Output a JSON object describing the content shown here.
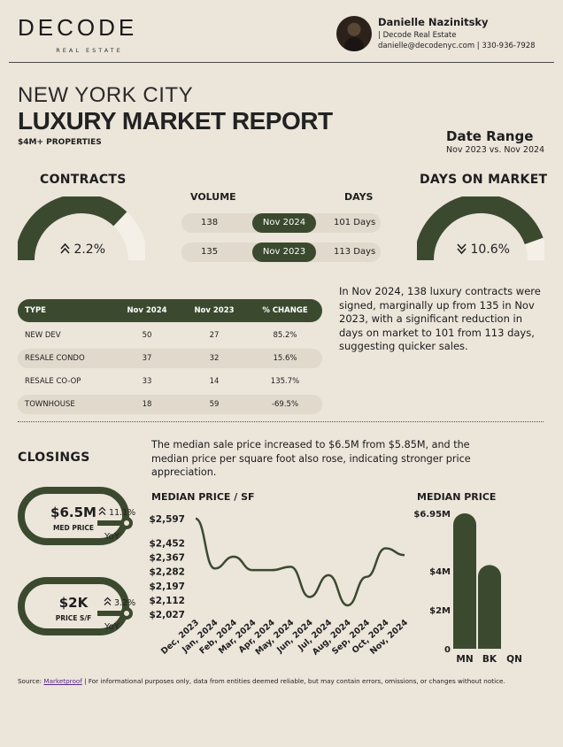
{
  "brand": {
    "name": "DECODE",
    "subtitle": "REAL ESTATE"
  },
  "agent": {
    "name": "Danielle Nazinitsky",
    "company": "| Decode Real Estate",
    "contact": "danielle@decodenyc.com | 330-936-7928"
  },
  "report": {
    "title_line1": "NEW YORK CITY",
    "title_line2": "LUXURY MARKET REPORT",
    "subtitle": "$4M+ PROPERTIES",
    "date_range_label": "Date Range",
    "date_range_value": "Nov 2023 vs. Nov 2024"
  },
  "contracts": {
    "heading": "CONTRACTS",
    "change": "2.2%",
    "gauge_fraction": 0.74,
    "volume_header": "VOLUME",
    "days_header": "DAYS",
    "rows": [
      {
        "volume": "138",
        "period": "Nov 2024",
        "days": "101 Days"
      },
      {
        "volume": "135",
        "period": "Nov 2023",
        "days": "113 Days"
      }
    ]
  },
  "days_on_market": {
    "heading": "DAYS ON MARKET",
    "change": "10.6%",
    "gauge_fraction": 0.89
  },
  "table": {
    "headers": [
      "TYPE",
      "Nov 2024",
      "Nov 2023",
      "% CHANGE"
    ],
    "rows": [
      [
        "NEW DEV",
        "50",
        "27",
        "85.2%"
      ],
      [
        "RESALE CONDO",
        "37",
        "32",
        "15.6%"
      ],
      [
        "RESALE CO-OP",
        "33",
        "14",
        "135.7%"
      ],
      [
        "TOWNHOUSE",
        "18",
        "59",
        "-69.5%"
      ]
    ]
  },
  "contracts_summary": "In Nov 2024, 138 luxury contracts were signed, marginally up from 135 in Nov 2023, with a significant reduction in days on market to 101 from 113 days, suggesting quicker sales.",
  "closings": {
    "heading": "CLOSINGS",
    "summary": "The median sale price increased to $6.5M from $5.85M, and the median price per square foot also rose, indicating stronger price appreciation.",
    "metrics": [
      {
        "value": "$6.5M",
        "label": "MED PRICE",
        "change": "11.1%",
        "yoy": "YoY"
      },
      {
        "value": "$2K",
        "label": "PRICE S/F",
        "change": "3.2%",
        "yoy": "YoY"
      }
    ]
  },
  "chart_data": [
    {
      "type": "line",
      "title": "MEDIAN PRICE / SF",
      "x": [
        "Dec, 2023",
        "Jan, 2024",
        "Feb, 2024",
        "Mar, 2024",
        "Apr, 2024",
        "May, 2024",
        "Jun, 2024",
        "Jul, 2024",
        "Aug, 2024",
        "Sep, 2024",
        "Oct, 2024",
        "Nov, 2024"
      ],
      "values": [
        2597,
        2300,
        2370,
        2290,
        2290,
        2310,
        2130,
        2260,
        2080,
        2250,
        2420,
        2380
      ],
      "yticks": [
        "$2,597",
        "$2,452",
        "$2,367",
        "$2,282",
        "$2,197",
        "$2,112",
        "$2,027"
      ],
      "ytick_values": [
        2597,
        2452,
        2367,
        2282,
        2197,
        2112,
        2027
      ],
      "ylim": [
        2027,
        2597
      ],
      "xlabel": "",
      "ylabel": ""
    },
    {
      "type": "bar",
      "title": "MEDIAN PRICE",
      "categories": [
        "MN",
        "BK",
        "QN"
      ],
      "values": [
        6.95,
        4.3,
        0
      ],
      "yticks": [
        "$6.95M",
        "$4M",
        "$2M",
        "0"
      ],
      "ytick_values": [
        6.95,
        4,
        2,
        0
      ],
      "ylim": [
        0,
        6.95
      ],
      "xlabel": "",
      "ylabel": ""
    }
  ],
  "footer": {
    "source_label": "Source:",
    "source_link": "Marketproof",
    "disclaimer": "| For informational purposes only, data from entities deemed reliable, but may contain errors, omissions, or changes without notice."
  },
  "colors": {
    "accent": "#3b4a2f",
    "background": "#ebe5da",
    "pill": "#e0d9cc",
    "track": "#f4f0e8"
  }
}
